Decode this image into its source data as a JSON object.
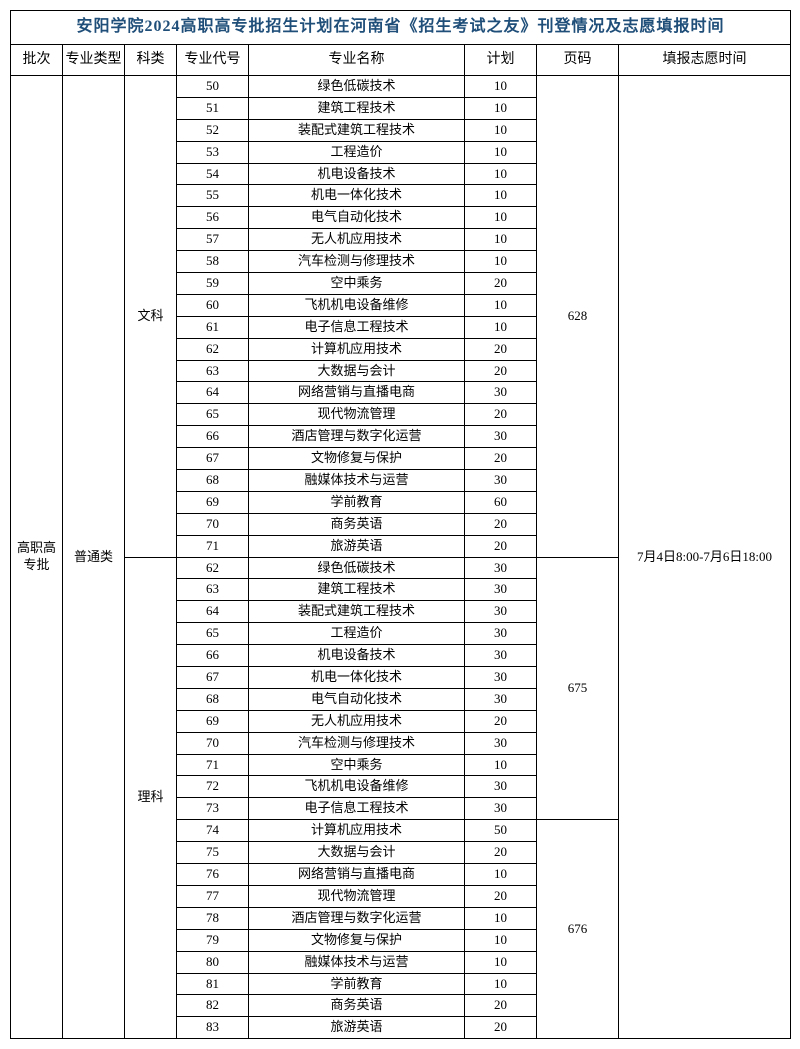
{
  "title": "安阳学院2024高职高专批招生计划在河南省《招生考试之友》刊登情况及志愿填报时间",
  "headers": {
    "batch": "批次",
    "majorType": "专业类型",
    "subject": "科类",
    "majorCode": "专业代号",
    "majorName": "专业名称",
    "plan": "计划",
    "page": "页码",
    "applyTime": "填报志愿时间"
  },
  "batch": "高职高专批",
  "majorType": "普通类",
  "applyTime": "7月4日8:00-7月6日18:00",
  "groups": [
    {
      "subject": "文科",
      "page": "628",
      "rows": [
        {
          "code": "50",
          "name": "绿色低碳技术",
          "plan": "10"
        },
        {
          "code": "51",
          "name": "建筑工程技术",
          "plan": "10"
        },
        {
          "code": "52",
          "name": "装配式建筑工程技术",
          "plan": "10"
        },
        {
          "code": "53",
          "name": "工程造价",
          "plan": "10"
        },
        {
          "code": "54",
          "name": "机电设备技术",
          "plan": "10"
        },
        {
          "code": "55",
          "name": "机电一体化技术",
          "plan": "10"
        },
        {
          "code": "56",
          "name": "电气自动化技术",
          "plan": "10"
        },
        {
          "code": "57",
          "name": "无人机应用技术",
          "plan": "10"
        },
        {
          "code": "58",
          "name": "汽车检测与修理技术",
          "plan": "10"
        },
        {
          "code": "59",
          "name": "空中乘务",
          "plan": "20"
        },
        {
          "code": "60",
          "name": "飞机机电设备维修",
          "plan": "10"
        },
        {
          "code": "61",
          "name": "电子信息工程技术",
          "plan": "10"
        },
        {
          "code": "62",
          "name": "计算机应用技术",
          "plan": "20"
        },
        {
          "code": "63",
          "name": "大数据与会计",
          "plan": "20"
        },
        {
          "code": "64",
          "name": "网络营销与直播电商",
          "plan": "30"
        },
        {
          "code": "65",
          "name": "现代物流管理",
          "plan": "20"
        },
        {
          "code": "66",
          "name": "酒店管理与数字化运营",
          "plan": "30"
        },
        {
          "code": "67",
          "name": "文物修复与保护",
          "plan": "20"
        },
        {
          "code": "68",
          "name": "融媒体技术与运营",
          "plan": "30"
        },
        {
          "code": "69",
          "name": "学前教育",
          "plan": "60"
        },
        {
          "code": "70",
          "name": "商务英语",
          "plan": "20"
        },
        {
          "code": "71",
          "name": "旅游英语",
          "plan": "20"
        }
      ]
    },
    {
      "subject": "理科",
      "pageSections": [
        {
          "page": "675",
          "rows": [
            {
              "code": "62",
              "name": "绿色低碳技术",
              "plan": "30"
            },
            {
              "code": "63",
              "name": "建筑工程技术",
              "plan": "30"
            },
            {
              "code": "64",
              "name": "装配式建筑工程技术",
              "plan": "30"
            },
            {
              "code": "65",
              "name": "工程造价",
              "plan": "30"
            },
            {
              "code": "66",
              "name": "机电设备技术",
              "plan": "30"
            },
            {
              "code": "67",
              "name": "机电一体化技术",
              "plan": "30"
            },
            {
              "code": "68",
              "name": "电气自动化技术",
              "plan": "30"
            },
            {
              "code": "69",
              "name": "无人机应用技术",
              "plan": "20"
            },
            {
              "code": "70",
              "name": "汽车检测与修理技术",
              "plan": "30"
            },
            {
              "code": "71",
              "name": "空中乘务",
              "plan": "10"
            },
            {
              "code": "72",
              "name": "飞机机电设备维修",
              "plan": "30"
            },
            {
              "code": "73",
              "name": "电子信息工程技术",
              "plan": "30"
            }
          ]
        },
        {
          "page": "676",
          "rows": [
            {
              "code": "74",
              "name": "计算机应用技术",
              "plan": "50"
            },
            {
              "code": "75",
              "name": "大数据与会计",
              "plan": "20"
            },
            {
              "code": "76",
              "name": "网络营销与直播电商",
              "plan": "10"
            },
            {
              "code": "77",
              "name": "现代物流管理",
              "plan": "20"
            },
            {
              "code": "78",
              "name": "酒店管理与数字化运营",
              "plan": "10"
            },
            {
              "code": "79",
              "name": "文物修复与保护",
              "plan": "10"
            },
            {
              "code": "80",
              "name": "融媒体技术与运营",
              "plan": "10"
            },
            {
              "code": "81",
              "name": "学前教育",
              "plan": "10"
            },
            {
              "code": "82",
              "name": "商务英语",
              "plan": "20"
            },
            {
              "code": "83",
              "name": "旅游英语",
              "plan": "20"
            }
          ]
        }
      ]
    }
  ],
  "styles": {
    "title_color": "#1f4e79",
    "border_color": "#000000",
    "font_family": "SimSun",
    "title_fontsize": 16,
    "header_fontsize": 14,
    "cell_fontsize": 13
  }
}
